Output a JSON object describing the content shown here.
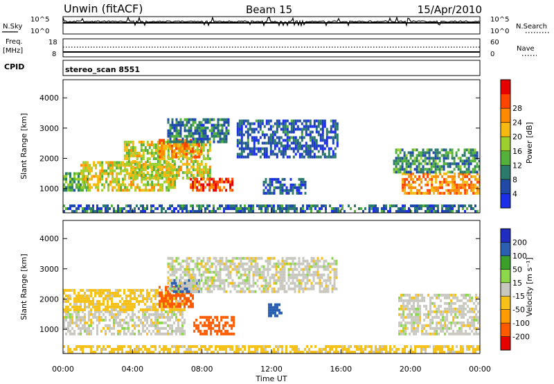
{
  "header": {
    "station": "Unwin (fitACF)",
    "beam": "Beam 15",
    "date": "15/Apr/2010"
  },
  "strip_noise": {
    "left_label": "N.Sky",
    "right_label": "N.Search",
    "left_ticks": [
      "10^5",
      "10^0"
    ],
    "right_ticks": [
      "10^5",
      "10^0"
    ]
  },
  "strip_freq": {
    "left_label_1": "Freq.",
    "left_label_2": "[MHz]",
    "right_label": "Nave",
    "left_ticks": [
      "18",
      "8"
    ],
    "right_ticks": [
      "60",
      "0"
    ]
  },
  "strip_cpid": {
    "label": "CPID",
    "text": "stereo_scan 8551"
  },
  "chart_data": [
    {
      "type": "heatmap",
      "name": "power",
      "ylabel": "Slant Range [km]",
      "yticks": [
        "1000",
        "2000",
        "3000",
        "4000"
      ],
      "ylim": [
        200,
        4600
      ],
      "xlim": [
        0,
        24
      ],
      "colorbar": {
        "title": "Power [dB]",
        "range": [
          0,
          32
        ],
        "labels": [
          "4",
          "8",
          "12",
          "16",
          "20",
          "24",
          "28"
        ],
        "colors": [
          "#1d2ee8",
          "#1f4aa8",
          "#2c7a6b",
          "#54b23c",
          "#9cd02e",
          "#f6b912",
          "#ff8a00",
          "#ff4500",
          "#e60000"
        ]
      },
      "regions": [
        {
          "t0": 0.0,
          "t1": 1.5,
          "r0": 900,
          "r1": 1500,
          "v": 12
        },
        {
          "t0": 1.0,
          "t1": 6.5,
          "r0": 900,
          "r1": 1900,
          "v": 18
        },
        {
          "t0": 3.5,
          "t1": 8.5,
          "r0": 1300,
          "r1": 2500,
          "v": 17
        },
        {
          "t0": 5.5,
          "t1": 8.0,
          "r0": 2000,
          "r1": 2600,
          "v": 23
        },
        {
          "t0": 7.3,
          "t1": 9.7,
          "r0": 900,
          "r1": 1300,
          "v": 27
        },
        {
          "t0": 6.0,
          "t1": 9.5,
          "r0": 2500,
          "r1": 3300,
          "v": 8
        },
        {
          "t0": 10.0,
          "t1": 15.8,
          "r0": 2000,
          "r1": 3200,
          "v": 6
        },
        {
          "t0": 11.5,
          "t1": 14.0,
          "r0": 800,
          "r1": 1300,
          "v": 6
        },
        {
          "t0": 19.5,
          "t1": 24.0,
          "r0": 800,
          "r1": 1500,
          "v": 23
        },
        {
          "t0": 19.0,
          "t1": 24.0,
          "r0": 1500,
          "r1": 2300,
          "v": 10
        },
        {
          "t0": 0.0,
          "t1": 24.0,
          "r0": 200,
          "r1": 450,
          "v": 7
        }
      ]
    },
    {
      "type": "heatmap",
      "name": "velocity",
      "ylabel": "Slant Range [km]",
      "yticks": [
        "1000",
        "2000",
        "3000",
        "4000"
      ],
      "ylim": [
        200,
        4600
      ],
      "xlim": [
        0,
        24
      ],
      "xlabel": "Time UT",
      "xticks": [
        "00:00",
        "04:00",
        "08:00",
        "12:00",
        "16:00",
        "20:00",
        "00:00"
      ],
      "colorbar": {
        "title": "Velocity [m s⁻¹]",
        "labels": [
          "-200",
          "-100",
          "-50",
          "-15",
          "15",
          "50",
          "100",
          "200"
        ],
        "colors": [
          "#e60000",
          "#ff5a00",
          "#ff9a00",
          "#f6c21a",
          "#c8c8c0",
          "#8cd84a",
          "#3aa02a",
          "#2b5fb0",
          "#1f2ec0"
        ]
      },
      "regions": [
        {
          "t0": 0.0,
          "t1": 7.0,
          "r0": 800,
          "r1": 1600,
          "v": 0
        },
        {
          "t0": 0.0,
          "t1": 7.0,
          "r0": 1600,
          "r1": 2300,
          "v": -30
        },
        {
          "t0": 5.5,
          "t1": 7.5,
          "r0": 1700,
          "r1": 2400,
          "v": -120
        },
        {
          "t0": 6.2,
          "t1": 7.8,
          "r0": 2200,
          "r1": 2600,
          "v": 150
        },
        {
          "t0": 7.5,
          "t1": 9.8,
          "r0": 800,
          "r1": 1400,
          "v": -150
        },
        {
          "t0": 6.0,
          "t1": 15.8,
          "r0": 2200,
          "r1": 3300,
          "v": 0
        },
        {
          "t0": 11.8,
          "t1": 12.6,
          "r0": 1400,
          "r1": 1800,
          "v": 150
        },
        {
          "t0": 19.3,
          "t1": 24.0,
          "r0": 800,
          "r1": 2100,
          "v": 0
        },
        {
          "t0": 0.0,
          "t1": 24.0,
          "r0": 200,
          "r1": 400,
          "v": -30
        }
      ]
    }
  ]
}
